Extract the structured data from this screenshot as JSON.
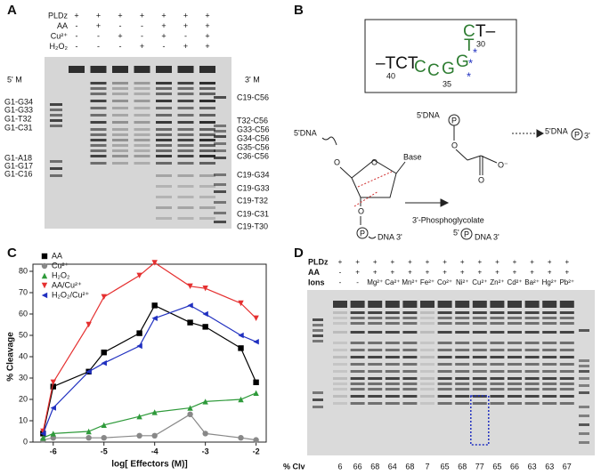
{
  "panel_a": {
    "label": "A",
    "rows": [
      {
        "name": "PLDz",
        "marks": [
          "+",
          "+",
          "+",
          "+",
          "+",
          "+",
          "+"
        ]
      },
      {
        "name": "AA",
        "marks": [
          "-",
          "+",
          "-",
          "-",
          "+",
          "+",
          "+"
        ]
      },
      {
        "name": "Cu²⁺",
        "marks": [
          "-",
          "-",
          "+",
          "-",
          "+",
          "-",
          "+"
        ]
      },
      {
        "name": "H₂O₂",
        "marks": [
          "-",
          "-",
          "-",
          "+",
          "-",
          "+",
          "+"
        ]
      }
    ],
    "left_marker": "5' M",
    "right_marker": "3' M",
    "left_bands": [
      "G1-G34",
      "G1-G33",
      "G1-T32",
      "G1-C31",
      "G1-A18",
      "G1-G17",
      "G1-C16"
    ],
    "right_bands": [
      "C19-C56",
      "T32-C56",
      "G33-C56",
      "G34-C56",
      "G35-C56",
      "C36-C56",
      "C19-G34",
      "C19-G33",
      "C19-T32",
      "C19-C31",
      "C19-T30"
    ]
  },
  "panel_b": {
    "label": "B",
    "sequence": [
      "–TCT",
      "40",
      "C",
      "C",
      "G",
      "35",
      "G",
      "T",
      "C",
      "T–",
      "30",
      "*",
      "*",
      "*"
    ],
    "chem": [
      "5'DNA",
      "O",
      "O",
      "Base",
      "O",
      "P",
      "DNA 3'",
      "3'-Phosphoglycolate",
      "5'DNA",
      "P",
      "O",
      "O⁻",
      "O",
      "5'DNA",
      "P",
      "3'",
      "5'",
      "P",
      "DNA 3'"
    ]
  },
  "chart_data": {
    "type": "scatter",
    "label": "C",
    "xlabel": "log[ Effectors (M)]",
    "ylabel": "% Cleavage",
    "xlim": [
      -6.4,
      -1.8
    ],
    "ylim": [
      0,
      80
    ],
    "xticks": [
      -6,
      -5,
      -4,
      -3,
      -2
    ],
    "yticks": [
      0,
      10,
      20,
      30,
      40,
      50,
      60,
      70,
      80
    ],
    "x": [
      -6.2,
      -6,
      -5.3,
      -5,
      -4.3,
      -4,
      -3.3,
      -3,
      -2.3,
      -2
    ],
    "series": [
      {
        "name": "AA",
        "color": "#000000",
        "marker": "square",
        "values": [
          4,
          26,
          33,
          42,
          51,
          64,
          56,
          54,
          44,
          28
        ]
      },
      {
        "name": "Cu²⁺",
        "color": "#888888",
        "marker": "circle",
        "values": [
          1,
          2,
          2,
          2,
          3,
          3,
          13,
          4,
          2,
          1
        ]
      },
      {
        "name": "H₂O₂",
        "color": "#2e9a3a",
        "marker": "triangle-up",
        "values": [
          2,
          4,
          5,
          8,
          12,
          14,
          16,
          19,
          20,
          23
        ]
      },
      {
        "name": "AA/Cu²⁺",
        "color": "#e53030",
        "marker": "triangle-down",
        "values": [
          5,
          28,
          55,
          68,
          78,
          84,
          73,
          72,
          65,
          58
        ]
      },
      {
        "name": "H₂O₂/Cu²⁺",
        "color": "#2030c0",
        "marker": "triangle-left",
        "values": [
          4,
          16,
          33,
          37,
          45,
          58,
          64,
          60,
          50,
          47
        ]
      }
    ]
  },
  "panel_d": {
    "label": "D",
    "rows": [
      {
        "name": "PLDz",
        "marks": [
          "+",
          "+",
          "+",
          "+",
          "+",
          "+",
          "+",
          "+",
          "+",
          "+",
          "+",
          "+",
          "+",
          "+"
        ]
      },
      {
        "name": "AA",
        "marks": [
          "-",
          "+",
          "+",
          "+",
          "+",
          "+",
          "+",
          "+",
          "+",
          "+",
          "+",
          "+",
          "+",
          "+"
        ]
      },
      {
        "name": "Ions",
        "marks": [
          "-",
          "-",
          "Mg²⁺",
          "Ca²⁺",
          "Mn²⁺",
          "Fe²⁺",
          "Co²⁺",
          "Ni²⁺",
          "Cu²⁺",
          "Zn²⁺",
          "Cd²⁺",
          "Ba²⁺",
          "Hg²⁺",
          "Pb²⁺"
        ]
      }
    ],
    "clv_label": "% Clv",
    "clv": [
      6,
      66,
      68,
      64,
      68,
      7,
      65,
      68,
      77,
      65,
      66,
      63,
      63,
      67
    ]
  }
}
